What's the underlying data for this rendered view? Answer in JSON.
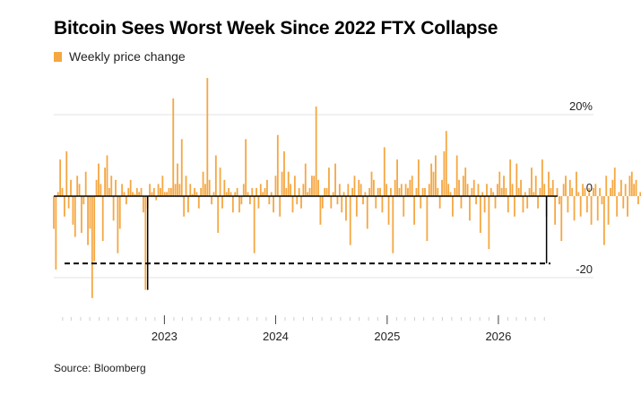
{
  "title": "Bitcoin Sees Worst Week Since 2022 FTX Collapse",
  "source": "Source: Bloomberg",
  "colors": {
    "bar": "#F5A742",
    "marker": "#000000",
    "grid": "#e3e3e3"
  },
  "chart_data": {
    "type": "bar",
    "legend": [
      "Weekly price change"
    ],
    "legend_placement": "top-left",
    "y_tick_labels": [
      "20%",
      "0",
      "-20"
    ],
    "y_ticks": [
      20,
      0,
      -20
    ],
    "ylim": [
      -30,
      30
    ],
    "xlim": [
      "2022-01-03",
      "2026-06-15"
    ],
    "x_tick_labels": [
      "2023",
      "2024",
      "2025",
      "2026"
    ],
    "x_ticks": [
      "2023-01-01",
      "2024-01-01",
      "2025-01-01",
      "2026-01-01"
    ],
    "grid": true,
    "reference_line": {
      "value": -16.5,
      "style": "dashed",
      "description": "level of latest weekly drop"
    },
    "highlighted_weeks": [
      {
        "date": "2022-11-07",
        "value": -23
      },
      {
        "date": "2026-06-08",
        "value": -16.5
      }
    ],
    "series": [
      {
        "start_date": "2022-01-03",
        "interval": "week",
        "values": [
          -8,
          -18,
          1,
          9,
          2,
          -5,
          11,
          -3,
          4,
          -7,
          -10,
          5,
          3,
          -9,
          -2,
          6,
          -12,
          -8,
          -25,
          -16,
          4,
          8,
          3,
          -11,
          7,
          10,
          2,
          5,
          -6,
          4,
          -14,
          -8,
          3,
          1,
          -2,
          2,
          4,
          1,
          0.5,
          2,
          1,
          2,
          -4,
          -23,
          -3,
          3,
          1,
          2,
          -1,
          3,
          2,
          5,
          1,
          1,
          2,
          2,
          24,
          3,
          8,
          3,
          14,
          -5,
          5,
          -4,
          3,
          0.5,
          2,
          1,
          -3,
          2,
          6,
          3,
          29,
          4,
          -2,
          1,
          10,
          -9,
          7,
          -3,
          4,
          1,
          2,
          1,
          -4,
          1,
          2,
          -4,
          -2,
          3,
          14,
          1,
          -2,
          2,
          -14,
          2,
          -3,
          3,
          1,
          2,
          4,
          -2,
          1,
          -4,
          5,
          15,
          -5,
          6,
          11,
          2,
          6,
          3,
          -4,
          5,
          -2,
          2,
          -3,
          3,
          8,
          1,
          2,
          5,
          5,
          22,
          4,
          -7,
          -3,
          2,
          2,
          7,
          -3,
          1,
          8,
          -2,
          3,
          -4,
          1,
          -6,
          3,
          -12,
          2,
          5,
          -5,
          4,
          3,
          -2,
          1,
          -8,
          2,
          6,
          4,
          -3,
          2,
          2,
          -4,
          12,
          3,
          -7,
          2,
          -14,
          4,
          9,
          2,
          3,
          -5,
          3,
          2,
          4,
          5,
          -7,
          2,
          9,
          -3,
          2,
          2,
          -11,
          3,
          8,
          6,
          10,
          2,
          -3,
          4,
          11,
          16,
          3,
          1,
          -5,
          2,
          10,
          4,
          -3,
          5,
          7,
          3,
          -6,
          2,
          4,
          -2,
          3,
          -9,
          1,
          -4,
          3,
          -13,
          2,
          1,
          -3,
          3,
          6,
          2,
          5,
          2,
          -4,
          9,
          3,
          -5,
          8,
          2,
          4,
          -4,
          1,
          -3,
          2,
          7,
          1,
          5,
          -3,
          2,
          9,
          3,
          -5,
          6,
          2,
          4,
          -7,
          2,
          -2,
          -11,
          3,
          5,
          -4,
          4,
          2,
          -6,
          6,
          1,
          -5,
          3,
          2,
          -4,
          2,
          -7,
          2,
          3,
          -6,
          2,
          -2,
          -12,
          5,
          -7,
          2,
          4,
          7,
          -5,
          1,
          4,
          -3,
          3,
          -5,
          5,
          6,
          3,
          4,
          -2,
          1,
          -3,
          -16.5
        ]
      }
    ]
  }
}
